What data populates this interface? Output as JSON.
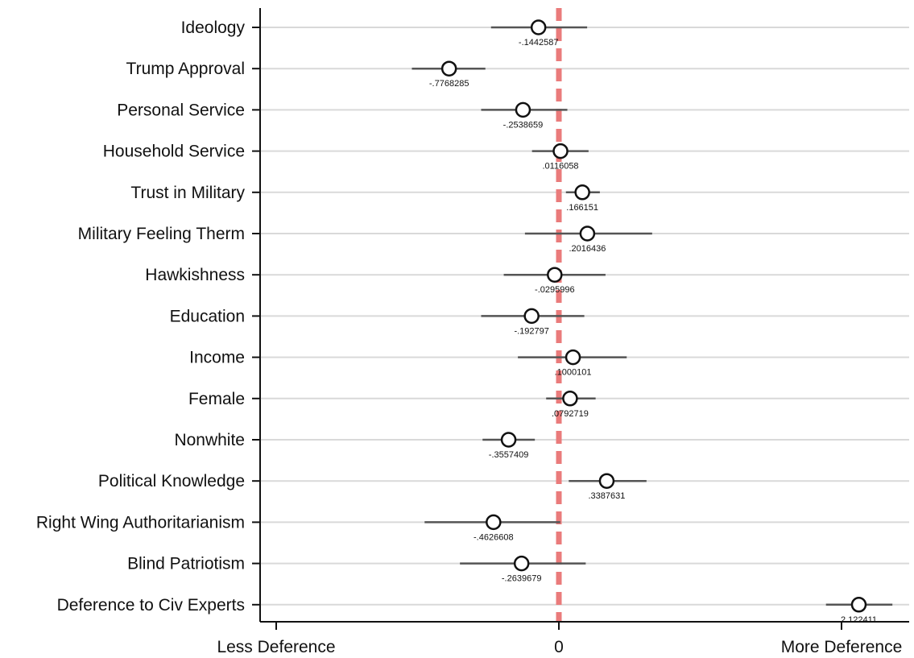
{
  "chart_data": {
    "type": "scatter",
    "subtype": "coefficient-plot",
    "title": "",
    "xlabel": "",
    "ylabel": "",
    "xlim": [
      -2.0,
      2.44
    ],
    "grid": true,
    "reference_line": {
      "x": 0,
      "style": "dashed",
      "color": "#ea7b7b"
    },
    "x_ticks": [
      {
        "value": -2,
        "label": "Less Deference"
      },
      {
        "value": 0,
        "label": "0"
      },
      {
        "value": 2,
        "label": "More Deference"
      }
    ],
    "categories": [
      "Ideology",
      "Trump Approval",
      "Personal Service",
      "Household Service",
      "Trust in Military",
      "Military Feeling Therm",
      "Hawkishness",
      "Education",
      "Income",
      "Female",
      "Nonwhite",
      "Political Knowledge",
      "Right Wing Authoritarianism",
      "Blind Patriotism",
      "Deference to Civ Experts"
    ],
    "estimates": [
      -0.1442587,
      -0.7768285,
      -0.2538659,
      0.0116058,
      0.166151,
      0.2016436,
      -0.0295996,
      -0.192797,
      0.1000101,
      0.0792719,
      -0.3557409,
      0.3387631,
      -0.4626608,
      -0.2639679,
      2.122411
    ],
    "estimate_labels": [
      "-.1442587",
      "-.7768285",
      "-.2538659",
      ".0116058",
      ".166151",
      ".2016436",
      "-.0295996",
      "-.192797",
      ".1000101",
      ".0792719",
      "-.3557409",
      ".3387631",
      "-.4626608",
      "-.2639679",
      "2.122411"
    ],
    "ci_low": [
      -0.48,
      -1.04,
      -0.55,
      -0.19,
      0.05,
      -0.24,
      -0.39,
      -0.55,
      -0.29,
      -0.09,
      -0.54,
      0.07,
      -0.95,
      -0.7,
      1.89
    ],
    "ci_high": [
      0.2,
      -0.52,
      0.06,
      0.21,
      0.29,
      0.66,
      0.33,
      0.18,
      0.48,
      0.26,
      -0.17,
      0.62,
      0.01,
      0.19,
      2.36
    ]
  },
  "colors": {
    "axis": "#111111",
    "gridline": "#d9d9d9",
    "ci_line": "#555555",
    "marker_stroke": "#111111",
    "marker_fill": "#ffffff",
    "reference_line": "#ea7b7b"
  }
}
